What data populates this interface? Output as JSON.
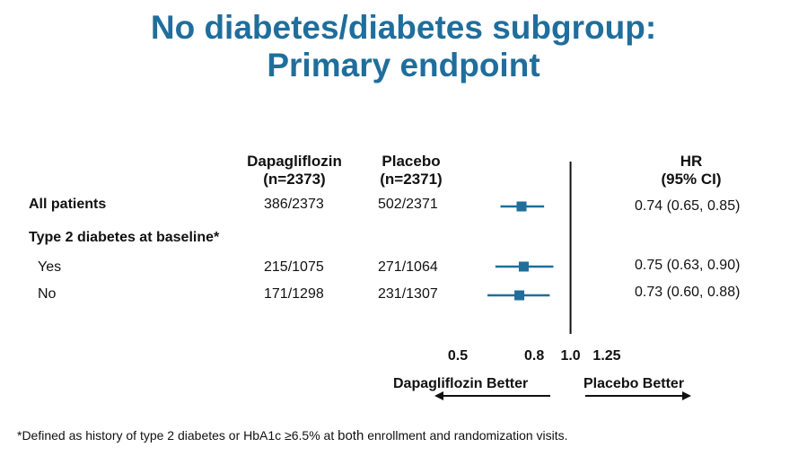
{
  "title": {
    "line1": "No diabetes/diabetes subgroup:",
    "line2": "Primary endpoint"
  },
  "columns": {
    "dapa": {
      "name": "Dapagliflozin",
      "n": "(n=2373)"
    },
    "placebo": {
      "name": "Placebo",
      "n": "(n=2371)"
    },
    "hr": {
      "name": "HR",
      "ci": "(95% CI)"
    }
  },
  "rows": [
    {
      "label": "All patients",
      "dapa": "386/2373",
      "placebo": "502/2371",
      "hr_text": "0.74 (0.65, 0.85)"
    },
    {
      "label": "Type 2 diabetes at baseline*"
    },
    {
      "label": "Yes",
      "dapa": "215/1075",
      "placebo": "271/1064",
      "hr_text": "0.75 (0.63, 0.90)"
    },
    {
      "label": "No",
      "dapa": "171/1298",
      "placebo": "231/1307",
      "hr_text": "0.73 (0.60, 0.88)"
    }
  ],
  "chart_data": {
    "type": "forest",
    "x_ticks": [
      "0.5",
      "0.8",
      "1.0",
      "1.25"
    ],
    "x_tick_values": [
      0.5,
      0.8,
      1.0,
      1.25
    ],
    "reference_line": 1.0,
    "scale": "log",
    "direction_labels": {
      "left": "Dapagliflozin Better",
      "right": "Placebo Better"
    },
    "estimates": [
      {
        "row": "All patients",
        "hr": 0.74,
        "lower": 0.65,
        "upper": 0.85
      },
      {
        "row": "Yes",
        "hr": 0.75,
        "lower": 0.63,
        "upper": 0.9
      },
      {
        "row": "No",
        "hr": 0.73,
        "lower": 0.6,
        "upper": 0.88
      }
    ],
    "marker_color": "#1f6e9c"
  },
  "footnote": {
    "prefix": "*Defined as history of type 2 diabetes or HbA1c ≥6.5% at",
    "emph": "both",
    "suffix": "enrollment and randomization visits."
  }
}
